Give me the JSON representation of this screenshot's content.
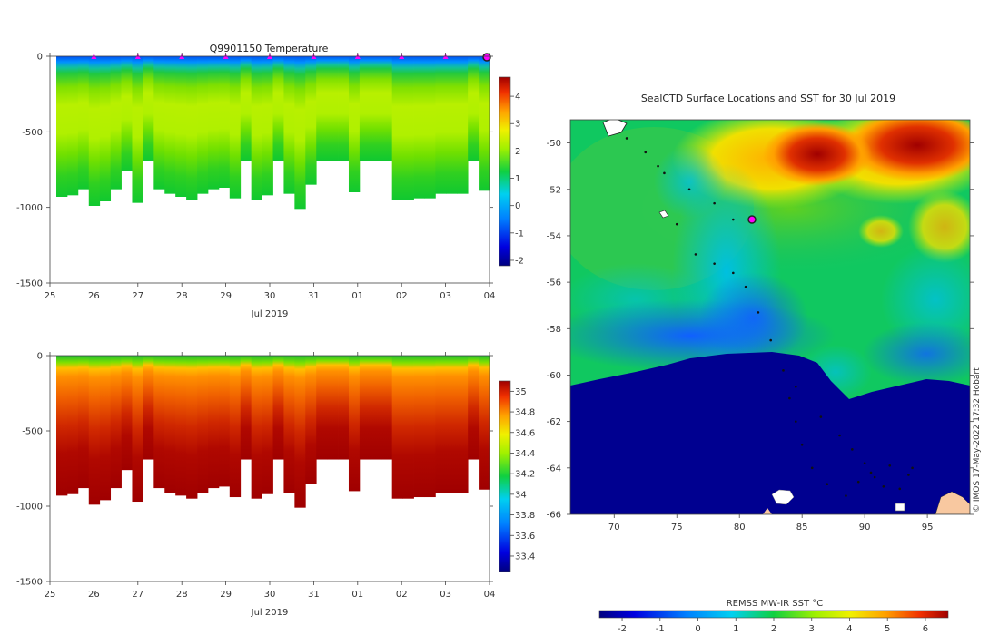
{
  "chart_data": [
    {
      "type": "heatmap",
      "title": "Q9901150  Temperature",
      "xlabel": "Jul 2019",
      "ylabel": "",
      "x_ticks": [
        "25",
        "26",
        "27",
        "28",
        "29",
        "30",
        "31",
        "01",
        "02",
        "03",
        "04"
      ],
      "y_ticks": [
        "0",
        "-500",
        "-1000",
        "-1500"
      ],
      "ylim": [
        -1500,
        0
      ],
      "profile_depth_m": [
        930,
        920,
        880,
        990,
        960,
        880,
        760,
        970,
        690,
        880,
        910,
        930,
        950,
        910,
        880,
        870,
        940,
        690,
        950,
        920,
        690,
        910,
        1010,
        850,
        690,
        690,
        690,
        900,
        690,
        690,
        690,
        950,
        950,
        940,
        940,
        910,
        910,
        910,
        690,
        890
      ],
      "surface_marker_days": [
        "26",
        "27",
        "28",
        "29",
        "30",
        "31",
        "01",
        "02",
        "03"
      ],
      "colorbar": {
        "min": -2.2,
        "max": 4.7,
        "ticks": [
          "4",
          "3",
          "2",
          "1",
          "0",
          "-1",
          "-2"
        ]
      }
    },
    {
      "type": "heatmap",
      "title": "",
      "xlabel": "Jul 2019",
      "ylabel": "",
      "x_ticks": [
        "25",
        "26",
        "27",
        "28",
        "29",
        "30",
        "31",
        "01",
        "02",
        "03",
        "04"
      ],
      "y_ticks": [
        "0",
        "-500",
        "-1000",
        "-1500"
      ],
      "ylim": [
        -1500,
        0
      ],
      "colorbar": {
        "min": 33.25,
        "max": 35.1,
        "ticks": [
          "35",
          "34.8",
          "34.6",
          "34.4",
          "34.2",
          "34",
          "33.8",
          "33.6",
          "33.4"
        ]
      }
    },
    {
      "type": "heatmap",
      "title": "SealCTD Surface Locations and SST for 30 Jul 2019",
      "xlabel": "",
      "ylabel": "",
      "x_ticks": [
        "70",
        "75",
        "80",
        "85",
        "90",
        "95"
      ],
      "y_ticks": [
        "-50",
        "-52",
        "-54",
        "-56",
        "-58",
        "-60",
        "-62",
        "-64",
        "-66"
      ],
      "xlim": [
        66.5,
        98.4
      ],
      "ylim": [
        -66,
        -49
      ],
      "track_points": [
        [
          71.0,
          -49.8
        ],
        [
          72.5,
          -50.4
        ],
        [
          74.0,
          -51.3
        ],
        [
          76.0,
          -52.0
        ],
        [
          78.0,
          -52.6
        ],
        [
          79.5,
          -53.3
        ],
        [
          81.0,
          -53.3
        ],
        [
          73.5,
          -51.0
        ],
        [
          75.0,
          -53.5
        ],
        [
          76.5,
          -54.8
        ],
        [
          78.0,
          -55.2
        ],
        [
          79.5,
          -55.6
        ],
        [
          80.5,
          -56.2
        ],
        [
          81.5,
          -57.3
        ],
        [
          82.5,
          -58.5
        ],
        [
          83.5,
          -59.8
        ],
        [
          84.0,
          -61.0
        ],
        [
          84.5,
          -62.0
        ],
        [
          85.0,
          -63.0
        ],
        [
          85.8,
          -64.0
        ],
        [
          87.0,
          -64.7
        ],
        [
          88.5,
          -65.2
        ],
        [
          89.5,
          -64.6
        ],
        [
          90.5,
          -64.2
        ],
        [
          92.0,
          -63.9
        ],
        [
          93.5,
          -64.3
        ],
        [
          92.8,
          -64.9
        ],
        [
          91.5,
          -64.8
        ],
        [
          90.8,
          -64.4
        ],
        [
          93.8,
          -64.0
        ],
        [
          84.5,
          -60.5
        ],
        [
          86.5,
          -61.8
        ],
        [
          88.0,
          -62.6
        ],
        [
          89.0,
          -63.2
        ],
        [
          90.0,
          -63.8
        ]
      ],
      "current_position": [
        81.0,
        -53.3
      ],
      "colorbar": {
        "label": "REMSS MW-IR SST °C",
        "min": -2.6,
        "max": 6.6,
        "ticks": [
          "-2",
          "-1",
          "0",
          "1",
          "2",
          "3",
          "4",
          "5",
          "6"
        ]
      }
    }
  ],
  "credit": "© IMOS 17-May-2022 17:32 Hobart",
  "colors": {
    "temperature_scale": [
      "#000080",
      "#0000d0",
      "#0040ff",
      "#0090ff",
      "#00d0f0",
      "#20e0a0",
      "#10c830",
      "#60e000",
      "#b0f000",
      "#f0f000",
      "#ffc000",
      "#ff7000",
      "#ee2000",
      "#a00000"
    ],
    "land": "#f8c8a0"
  }
}
